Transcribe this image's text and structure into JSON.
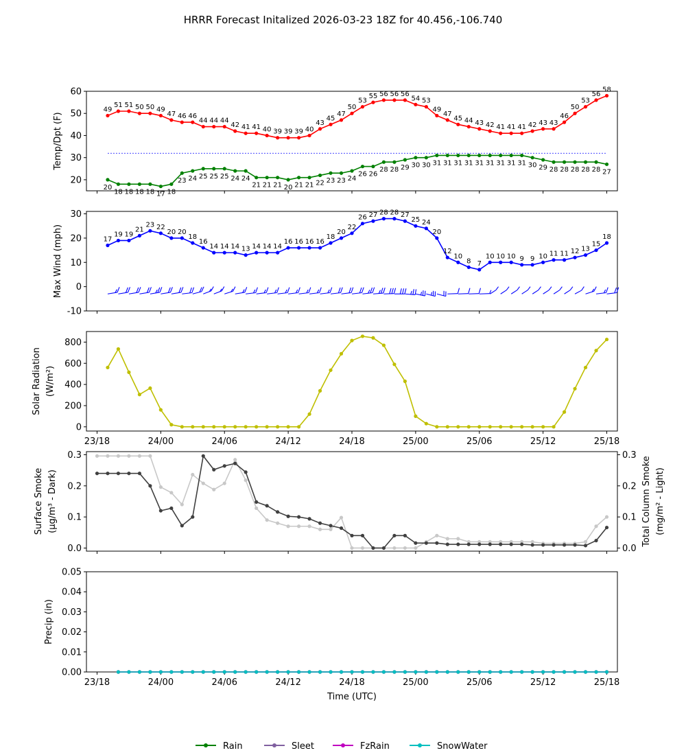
{
  "title": "HRRR Forecast Initalized 2026-03-23 18Z for 40.456,-106.740",
  "colors": {
    "temp": "#ff0000",
    "dewpoint": "#008000",
    "wind": "#0000ff",
    "freezing_line": "#0000ff",
    "solar": "#bfbf00",
    "smoke_dark": "#404040",
    "smoke_light": "#c8c8c8",
    "rain": "#008000",
    "sleet": "#8060a0",
    "fzrain": "#c000c0",
    "snowwater": "#00bfbf"
  },
  "xaxis": {
    "label": "Time (UTC)",
    "ticks": [
      {
        "h": 0,
        "label": "23/18"
      },
      {
        "h": 6,
        "label": "24/00"
      },
      {
        "h": 12,
        "label": "24/06"
      },
      {
        "h": 18,
        "label": "24/12"
      },
      {
        "h": 24,
        "label": "24/18"
      },
      {
        "h": 30,
        "label": "25/00"
      },
      {
        "h": 36,
        "label": "25/06"
      },
      {
        "h": 42,
        "label": "25/12"
      },
      {
        "h": 48,
        "label": "25/18"
      }
    ],
    "range": [
      -1,
      49
    ]
  },
  "legend": [
    {
      "label": "Rain",
      "color": "#008000"
    },
    {
      "label": "Sleet",
      "color": "#8060a0"
    },
    {
      "label": "FzRain",
      "color": "#c000c0"
    },
    {
      "label": "SnowWater",
      "color": "#00bfbf"
    }
  ],
  "chart_data": [
    {
      "type": "line",
      "ylabel": "Temp/Dpt (F)",
      "ylim": [
        15,
        60
      ],
      "yticks": [
        20,
        30,
        40,
        50,
        60
      ],
      "hours_start": 1,
      "freezing_line": 32,
      "series": [
        {
          "name": "Temperature",
          "values": [
            49,
            51,
            51,
            50,
            50,
            49,
            47,
            46,
            46,
            44,
            44,
            44,
            42,
            41,
            41,
            40,
            39,
            39,
            39,
            40,
            43,
            45,
            47,
            50,
            53,
            55,
            56,
            56,
            56,
            54,
            53,
            49,
            47,
            45,
            44,
            43,
            42,
            41,
            41,
            41,
            42,
            43,
            43,
            46,
            50,
            53,
            56,
            58
          ]
        },
        {
          "name": "Dewpoint",
          "values": [
            20,
            18,
            18,
            18,
            18,
            17,
            18,
            23,
            24,
            25,
            25,
            25,
            24,
            24,
            21,
            21,
            21,
            20,
            21,
            21,
            22,
            23,
            23,
            24,
            26,
            26,
            28,
            28,
            29,
            30,
            30,
            31,
            31,
            31,
            31,
            31,
            31,
            31,
            31,
            31,
            30,
            29,
            28,
            28,
            28,
            28,
            28,
            27
          ]
        }
      ]
    },
    {
      "type": "line",
      "ylabel": "Max Wind (mph)",
      "ylim": [
        -10,
        31
      ],
      "yticks": [
        -10,
        0,
        10,
        20,
        30
      ],
      "hours_start": 1,
      "series": [
        {
          "name": "Max Wind",
          "values": [
            17,
            19,
            19,
            21,
            23,
            22,
            20,
            20,
            18,
            16,
            14,
            14,
            14,
            13,
            14,
            14,
            14,
            16,
            16,
            16,
            16,
            18,
            20,
            22,
            26,
            27,
            28,
            28,
            27,
            25,
            24,
            20,
            12,
            10,
            8,
            7,
            10,
            10,
            10,
            9,
            9,
            10,
            11,
            11,
            12,
            13,
            15,
            18
          ]
        }
      ]
    },
    {
      "type": "line",
      "ylabel": "Solar Radiation (W/m²)",
      "ylim": [
        -40,
        900
      ],
      "yticks": [
        0,
        200,
        400,
        600,
        800
      ],
      "hours_start": 1,
      "series": [
        {
          "name": "Solar Radiation",
          "values": [
            560,
            735,
            515,
            305,
            365,
            160,
            20,
            0,
            0,
            0,
            0,
            0,
            0,
            0,
            0,
            0,
            0,
            0,
            0,
            120,
            340,
            535,
            690,
            815,
            855,
            840,
            770,
            590,
            430,
            100,
            30,
            0,
            0,
            0,
            0,
            0,
            0,
            0,
            0,
            0,
            0,
            0,
            0,
            140,
            360,
            560,
            720,
            825
          ]
        }
      ]
    },
    {
      "type": "line",
      "ylabel": "Surface Smoke (μg/m³ - Dark)",
      "ylabel_right": "Total Column Smoke (mg/m² - Light)",
      "ylim": [
        -0.01,
        0.31
      ],
      "yticks": [
        0.0,
        0.1,
        0.2,
        0.3
      ],
      "yticks_right": [
        0.0,
        0.1,
        0.2,
        0.3
      ],
      "hours_start": 1,
      "series": [
        {
          "name": "Surface Smoke",
          "axis": "left",
          "values": [
            0.24,
            0.24,
            0.24,
            0.24,
            0.24,
            0.2,
            0.12,
            0.128,
            0.072,
            0.1,
            0.296,
            0.252,
            0.264,
            0.272,
            0.244,
            0.148,
            0.136,
            0.116,
            0.102,
            0.1,
            0.094,
            0.08,
            0.072,
            0.064,
            0.04,
            0.04,
            0.0,
            0.0,
            0.04,
            0.04,
            0.016,
            0.016,
            0.016,
            0.012,
            0.012,
            0.012,
            0.012,
            0.012,
            0.012,
            0.012,
            0.012,
            0.01,
            0.01,
            0.01,
            0.01,
            0.01,
            0.008,
            0.024,
            0.066
          ]
        },
        {
          "name": "Total Column Smoke",
          "axis": "right",
          "values": [
            0.296,
            0.296,
            0.296,
            0.296,
            0.296,
            0.296,
            0.196,
            0.178,
            0.14,
            0.236,
            0.208,
            0.188,
            0.208,
            0.284,
            0.218,
            0.128,
            0.09,
            0.08,
            0.07,
            0.07,
            0.07,
            0.06,
            0.06,
            0.098,
            0.0,
            0.0,
            0.0,
            0.0,
            0.0,
            0.0,
            0.0,
            0.02,
            0.04,
            0.03,
            0.03,
            0.02,
            0.02,
            0.02,
            0.02,
            0.02,
            0.02,
            0.02,
            0.015,
            0.015,
            0.015,
            0.015,
            0.02,
            0.07,
            0.1
          ]
        }
      ]
    },
    {
      "type": "line",
      "ylabel": "Precip (in)",
      "ylim": [
        0,
        0.05
      ],
      "yticks": [
        0.0,
        0.01,
        0.02,
        0.03,
        0.04,
        0.05
      ],
      "hours_start": 2,
      "series": [
        {
          "name": "Rain",
          "values": [
            0,
            0,
            0,
            0,
            0,
            0,
            0,
            0,
            0,
            0,
            0,
            0,
            0,
            0,
            0,
            0,
            0,
            0,
            0,
            0,
            0,
            0,
            0,
            0,
            0,
            0,
            0,
            0,
            0,
            0,
            0,
            0,
            0,
            0,
            0,
            0,
            0,
            0,
            0,
            0,
            0,
            0,
            0,
            0,
            0,
            0,
            0
          ]
        },
        {
          "name": "Sleet",
          "values": [
            0,
            0,
            0,
            0,
            0,
            0,
            0,
            0,
            0,
            0,
            0,
            0,
            0,
            0,
            0,
            0,
            0,
            0,
            0,
            0,
            0,
            0,
            0,
            0,
            0,
            0,
            0,
            0,
            0,
            0,
            0,
            0,
            0,
            0,
            0,
            0,
            0,
            0,
            0,
            0,
            0,
            0,
            0,
            0,
            0,
            0,
            0
          ]
        },
        {
          "name": "FzRain",
          "values": [
            0,
            0,
            0,
            0,
            0,
            0,
            0,
            0,
            0,
            0,
            0,
            0,
            0,
            0,
            0,
            0,
            0,
            0,
            0,
            0,
            0,
            0,
            0,
            0,
            0,
            0,
            0,
            0,
            0,
            0,
            0,
            0,
            0,
            0,
            0,
            0,
            0,
            0,
            0,
            0,
            0,
            0,
            0,
            0,
            0,
            0,
            0
          ]
        },
        {
          "name": "SnowWater",
          "values": [
            0,
            0,
            0,
            0,
            0,
            0,
            0,
            0,
            0,
            0,
            0,
            0,
            0,
            0,
            0,
            0,
            0,
            0,
            0,
            0,
            0,
            0,
            0,
            0,
            0,
            0,
            0,
            0,
            0,
            0,
            0,
            0,
            0,
            0,
            0,
            0,
            0,
            0,
            0,
            0,
            0,
            0,
            0,
            0,
            0,
            0,
            0
          ]
        }
      ]
    }
  ],
  "wind_barbs": {
    "speeds": [
      17,
      19,
      19,
      21,
      23,
      22,
      20,
      20,
      18,
      16,
      14,
      14,
      14,
      13,
      14,
      14,
      14,
      16,
      16,
      16,
      16,
      18,
      20,
      22,
      26,
      27,
      28,
      28,
      27,
      25,
      24,
      20,
      12,
      10,
      8,
      7,
      10,
      10,
      10,
      9,
      9,
      10,
      11,
      11,
      12,
      13,
      15,
      18
    ],
    "directions": [
      250,
      250,
      250,
      250,
      250,
      250,
      250,
      255,
      240,
      230,
      230,
      235,
      250,
      255,
      255,
      255,
      255,
      255,
      255,
      255,
      255,
      255,
      255,
      255,
      255,
      260,
      265,
      270,
      280,
      295,
      300,
      300,
      265,
      265,
      265,
      265,
      215,
      215,
      215,
      215,
      215,
      215,
      215,
      215,
      220,
      235,
      255,
      255
    ]
  }
}
